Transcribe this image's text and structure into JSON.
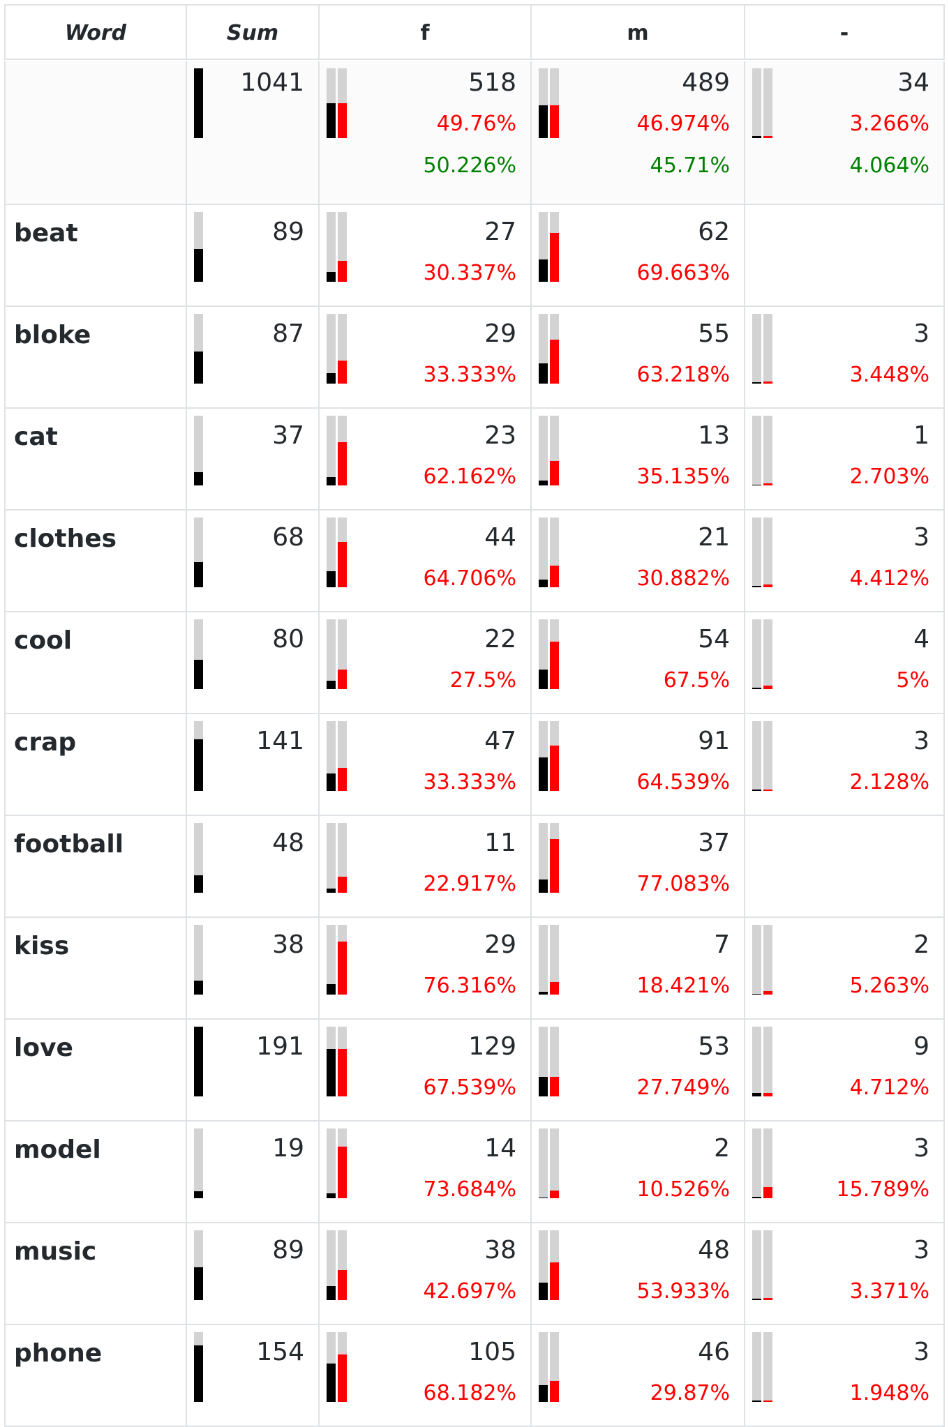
{
  "table": {
    "columns": [
      "Word",
      "Sum",
      "f",
      "m",
      "-"
    ],
    "summary": {
      "sum": "1041",
      "f": {
        "count": "518",
        "pct": "49.76%",
        "pct2": "50.226%"
      },
      "m": {
        "count": "489",
        "pct": "46.974%",
        "pct2": "45.71%"
      },
      "dash": {
        "count": "34",
        "pct": "3.266%",
        "pct2": "4.064%"
      }
    },
    "rows": [
      {
        "word": "beat",
        "sum": "89",
        "f": {
          "count": "27",
          "pct": "30.337%"
        },
        "m": {
          "count": "62",
          "pct": "69.663%"
        },
        "dash": null
      },
      {
        "word": "bloke",
        "sum": "87",
        "f": {
          "count": "29",
          "pct": "33.333%"
        },
        "m": {
          "count": "55",
          "pct": "63.218%"
        },
        "dash": {
          "count": "3",
          "pct": "3.448%"
        }
      },
      {
        "word": "cat",
        "sum": "37",
        "f": {
          "count": "23",
          "pct": "62.162%"
        },
        "m": {
          "count": "13",
          "pct": "35.135%"
        },
        "dash": {
          "count": "1",
          "pct": "2.703%"
        }
      },
      {
        "word": "clothes",
        "sum": "68",
        "f": {
          "count": "44",
          "pct": "64.706%"
        },
        "m": {
          "count": "21",
          "pct": "30.882%"
        },
        "dash": {
          "count": "3",
          "pct": "4.412%"
        }
      },
      {
        "word": "cool",
        "sum": "80",
        "f": {
          "count": "22",
          "pct": "27.5%"
        },
        "m": {
          "count": "54",
          "pct": "67.5%"
        },
        "dash": {
          "count": "4",
          "pct": "5%"
        }
      },
      {
        "word": "crap",
        "sum": "141",
        "f": {
          "count": "47",
          "pct": "33.333%"
        },
        "m": {
          "count": "91",
          "pct": "64.539%"
        },
        "dash": {
          "count": "3",
          "pct": "2.128%"
        }
      },
      {
        "word": "football",
        "sum": "48",
        "f": {
          "count": "11",
          "pct": "22.917%"
        },
        "m": {
          "count": "37",
          "pct": "77.083%"
        },
        "dash": null
      },
      {
        "word": "kiss",
        "sum": "38",
        "f": {
          "count": "29",
          "pct": "76.316%"
        },
        "m": {
          "count": "7",
          "pct": "18.421%"
        },
        "dash": {
          "count": "2",
          "pct": "5.263%"
        }
      },
      {
        "word": "love",
        "sum": "191",
        "f": {
          "count": "129",
          "pct": "67.539%"
        },
        "m": {
          "count": "53",
          "pct": "27.749%"
        },
        "dash": {
          "count": "9",
          "pct": "4.712%"
        }
      },
      {
        "word": "model",
        "sum": "19",
        "f": {
          "count": "14",
          "pct": "73.684%"
        },
        "m": {
          "count": "2",
          "pct": "10.526%"
        },
        "dash": {
          "count": "3",
          "pct": "15.789%"
        }
      },
      {
        "word": "music",
        "sum": "89",
        "f": {
          "count": "38",
          "pct": "42.697%"
        },
        "m": {
          "count": "48",
          "pct": "53.933%"
        },
        "dash": {
          "count": "3",
          "pct": "3.371%"
        }
      },
      {
        "word": "phone",
        "sum": "154",
        "f": {
          "count": "105",
          "pct": "68.182%"
        },
        "m": {
          "count": "46",
          "pct": "29.87%"
        },
        "dash": {
          "count": "3",
          "pct": "1.948%"
        }
      }
    ]
  },
  "colors": {
    "share_bar": "#000000",
    "pct_bar": "#ff0000",
    "bar_track": "#d3d3d3",
    "pct_text": "#ff0000",
    "expected_text": "#008000"
  }
}
